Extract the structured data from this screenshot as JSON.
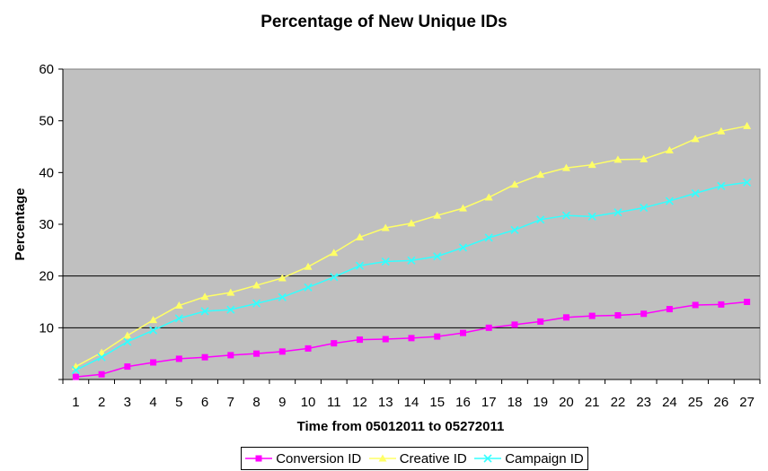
{
  "chart_data": {
    "type": "line",
    "title": "Percentage of New Unique IDs",
    "xlabel": "Time from 05012011 to 05272011",
    "ylabel": "Percentage",
    "x": [
      1,
      2,
      3,
      4,
      5,
      6,
      7,
      8,
      9,
      10,
      11,
      12,
      13,
      14,
      15,
      16,
      17,
      18,
      19,
      20,
      21,
      22,
      23,
      24,
      25,
      26,
      27
    ],
    "ylim": [
      0,
      60
    ],
    "yticks": [
      10,
      20,
      30,
      40,
      50,
      60
    ],
    "gridlines": [
      10,
      20
    ],
    "plot_background": "#c0c0c0",
    "legend_position": "bottom",
    "series": [
      {
        "name": "Conversion ID",
        "color": "#ff00ff",
        "marker": "square",
        "values": [
          0.5,
          1.0,
          2.5,
          3.3,
          4.0,
          4.3,
          4.7,
          5.0,
          5.4,
          6.0,
          7.0,
          7.7,
          7.8,
          8.0,
          8.3,
          9.0,
          10.0,
          10.6,
          11.2,
          12.0,
          12.3,
          12.4,
          12.7,
          13.6,
          14.4,
          14.5,
          15.0
        ]
      },
      {
        "name": "Creative ID",
        "color": "#ffff66",
        "marker": "triangle",
        "values": [
          2.5,
          5.2,
          8.5,
          11.5,
          14.3,
          16.0,
          16.8,
          18.2,
          19.6,
          21.8,
          24.5,
          27.5,
          29.3,
          30.2,
          31.7,
          33.1,
          35.2,
          37.7,
          39.6,
          40.9,
          41.5,
          42.5,
          42.6,
          44.3,
          46.5,
          48.0,
          49.0
        ]
      },
      {
        "name": "Campaign ID",
        "color": "#33ffff",
        "marker": "x",
        "values": [
          1.8,
          4.3,
          7.3,
          9.5,
          11.8,
          13.2,
          13.5,
          14.7,
          15.9,
          17.8,
          19.8,
          22.0,
          22.8,
          23.0,
          23.8,
          25.5,
          27.4,
          28.9,
          30.9,
          31.7,
          31.5,
          32.3,
          33.2,
          34.5,
          36.0,
          37.4,
          38.1
        ]
      }
    ]
  }
}
